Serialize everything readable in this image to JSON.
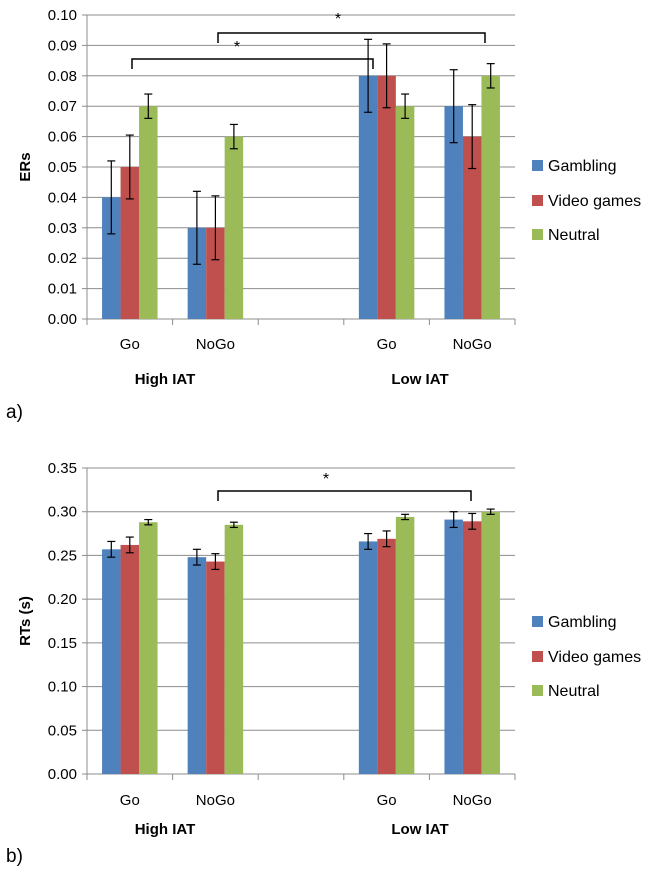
{
  "colors": {
    "gambling": "#4F81BD",
    "video_games": "#C0504D",
    "neutral": "#9BBB59",
    "grid": "#8C8C8C",
    "axis": "#8C8C8C"
  },
  "chart_data": [
    {
      "type": "bar",
      "panel_label": "a)",
      "ylabel": "ERs",
      "ylim": [
        0,
        0.1
      ],
      "yticks": [
        "0.00",
        "0.01",
        "0.02",
        "0.03",
        "0.04",
        "0.05",
        "0.06",
        "0.07",
        "0.08",
        "0.09",
        "0.10"
      ],
      "grid": true,
      "legend_position": "right",
      "categories": [
        "Go",
        "NoGo",
        "",
        "Go",
        "NoGo"
      ],
      "groups": [
        "High IAT",
        "Low IAT"
      ],
      "series": [
        {
          "name": "Gambling",
          "values": [
            0.04,
            0.03,
            null,
            0.08,
            0.07
          ],
          "errors": [
            0.012,
            0.012,
            null,
            0.012,
            0.012
          ]
        },
        {
          "name": "Video games",
          "values": [
            0.05,
            0.03,
            null,
            0.08,
            0.06
          ],
          "errors": [
            0.0105,
            0.0105,
            null,
            0.0105,
            0.0105
          ]
        },
        {
          "name": "Neutral",
          "values": [
            0.07,
            0.06,
            null,
            0.07,
            0.08
          ],
          "errors": [
            0.004,
            0.004,
            null,
            0.004,
            0.004
          ]
        }
      ],
      "annotations": [
        {
          "text": "*",
          "from": "High IAT Go",
          "to": "Low IAT Go"
        },
        {
          "text": "*",
          "from": "High IAT NoGo",
          "to": "Low IAT NoGo"
        }
      ]
    },
    {
      "type": "bar",
      "panel_label": "b)",
      "ylabel": "RTs (s)",
      "ylim": [
        0,
        0.35
      ],
      "yticks": [
        "0.00",
        "0.05",
        "0.10",
        "0.15",
        "0.20",
        "0.25",
        "0.30",
        "0.35"
      ],
      "grid": true,
      "legend_position": "right",
      "categories": [
        "Go",
        "NoGo",
        "",
        "Go",
        "NoGo"
      ],
      "groups": [
        "High IAT",
        "Low IAT"
      ],
      "series": [
        {
          "name": "Gambling",
          "values": [
            0.257,
            0.248,
            null,
            0.266,
            0.291
          ],
          "errors": [
            0.009,
            0.009,
            null,
            0.009,
            0.009
          ]
        },
        {
          "name": "Video games",
          "values": [
            0.262,
            0.243,
            null,
            0.269,
            0.289
          ],
          "errors": [
            0.009,
            0.009,
            null,
            0.009,
            0.009
          ]
        },
        {
          "name": "Neutral",
          "values": [
            0.288,
            0.285,
            null,
            0.294,
            0.3
          ],
          "errors": [
            0.003,
            0.003,
            null,
            0.003,
            0.003
          ]
        }
      ],
      "annotations": [
        {
          "text": "*",
          "from": "High IAT NoGo",
          "to": "Low IAT NoGo"
        }
      ]
    }
  ]
}
